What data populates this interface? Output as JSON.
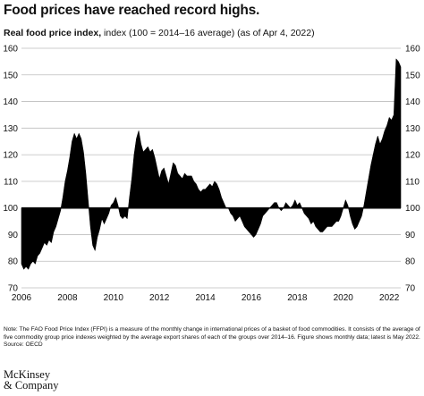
{
  "title": "Food prices have reached record highs.",
  "subtitle_bold": "Real food price index,",
  "subtitle_rest": " index (100 = 2014–16 average) (as of Apr 4, 2022)",
  "note": "Note: The FAO Food Price Index (FFPI) is a measure of the monthly change in international prices of a basket of food commodities. It consists of the average of five commodity group price indexes weighted by the average export shares of each of the groups over 2014–16. Figure shows monthly data; latest is May 2022.",
  "source": "Source: OECD",
  "logo_line1": "McKinsey",
  "logo_line2": "& Company",
  "colors": {
    "fill": "#000000",
    "grid": "#bdbdbd",
    "text": "#111111"
  },
  "chart_data": {
    "type": "area",
    "title": "Real food price index",
    "ylabel": "index (100 = 2014–16 average)",
    "baseline": 100,
    "ylim": [
      70,
      160
    ],
    "xlim": [
      2006.0,
      2022.5
    ],
    "yticks": [
      70,
      80,
      90,
      100,
      110,
      120,
      130,
      140,
      150,
      160
    ],
    "xticks": [
      2006,
      2008,
      2010,
      2012,
      2014,
      2016,
      2018,
      2020,
      2022
    ],
    "grid": true,
    "frequency": "monthly",
    "series": [
      {
        "points": [
          [
            2006.0,
            79
          ],
          [
            2006.1,
            77
          ],
          [
            2006.2,
            78
          ],
          [
            2006.3,
            77
          ],
          [
            2006.4,
            79
          ],
          [
            2006.5,
            80
          ],
          [
            2006.6,
            79
          ],
          [
            2006.7,
            82
          ],
          [
            2006.8,
            83
          ],
          [
            2006.9,
            85
          ],
          [
            2007.0,
            87
          ],
          [
            2007.1,
            86
          ],
          [
            2007.2,
            88
          ],
          [
            2007.3,
            87
          ],
          [
            2007.4,
            91
          ],
          [
            2007.5,
            93
          ],
          [
            2007.6,
            96
          ],
          [
            2007.7,
            99
          ],
          [
            2007.8,
            104
          ],
          [
            2007.9,
            110
          ],
          [
            2008.0,
            114
          ],
          [
            2008.1,
            119
          ],
          [
            2008.2,
            125
          ],
          [
            2008.3,
            128
          ],
          [
            2008.4,
            126
          ],
          [
            2008.5,
            128
          ],
          [
            2008.6,
            126
          ],
          [
            2008.7,
            121
          ],
          [
            2008.8,
            113
          ],
          [
            2008.9,
            103
          ],
          [
            2009.0,
            93
          ],
          [
            2009.1,
            86
          ],
          [
            2009.2,
            84
          ],
          [
            2009.3,
            89
          ],
          [
            2009.4,
            92
          ],
          [
            2009.5,
            96
          ],
          [
            2009.6,
            94
          ],
          [
            2009.7,
            96
          ],
          [
            2009.8,
            98
          ],
          [
            2009.9,
            101
          ],
          [
            2010.0,
            102
          ],
          [
            2010.1,
            104
          ],
          [
            2010.2,
            101
          ],
          [
            2010.3,
            97
          ],
          [
            2010.4,
            96
          ],
          [
            2010.5,
            97
          ],
          [
            2010.6,
            96
          ],
          [
            2010.7,
            104
          ],
          [
            2010.8,
            111
          ],
          [
            2010.9,
            120
          ],
          [
            2011.0,
            126
          ],
          [
            2011.1,
            129
          ],
          [
            2011.2,
            124
          ],
          [
            2011.3,
            121
          ],
          [
            2011.4,
            122
          ],
          [
            2011.5,
            123
          ],
          [
            2011.6,
            121
          ],
          [
            2011.7,
            122
          ],
          [
            2011.8,
            119
          ],
          [
            2011.9,
            115
          ],
          [
            2012.0,
            111
          ],
          [
            2012.1,
            114
          ],
          [
            2012.2,
            115
          ],
          [
            2012.3,
            112
          ],
          [
            2012.4,
            109
          ],
          [
            2012.5,
            113
          ],
          [
            2012.6,
            117
          ],
          [
            2012.7,
            116
          ],
          [
            2012.8,
            113
          ],
          [
            2012.9,
            112
          ],
          [
            2013.0,
            111
          ],
          [
            2013.1,
            113
          ],
          [
            2013.2,
            112
          ],
          [
            2013.3,
            112
          ],
          [
            2013.4,
            112
          ],
          [
            2013.5,
            110
          ],
          [
            2013.6,
            109
          ],
          [
            2013.7,
            107
          ],
          [
            2013.8,
            106
          ],
          [
            2013.9,
            107
          ],
          [
            2014.0,
            107
          ],
          [
            2014.1,
            108
          ],
          [
            2014.2,
            109
          ],
          [
            2014.3,
            108
          ],
          [
            2014.4,
            110
          ],
          [
            2014.5,
            109
          ],
          [
            2014.6,
            107
          ],
          [
            2014.7,
            104
          ],
          [
            2014.8,
            102
          ],
          [
            2014.9,
            100
          ],
          [
            2015.0,
            100
          ],
          [
            2015.1,
            98
          ],
          [
            2015.2,
            97
          ],
          [
            2015.3,
            95
          ],
          [
            2015.4,
            96
          ],
          [
            2015.5,
            97
          ],
          [
            2015.6,
            95
          ],
          [
            2015.7,
            93
          ],
          [
            2015.8,
            92
          ],
          [
            2015.9,
            91
          ],
          [
            2016.0,
            90
          ],
          [
            2016.1,
            89
          ],
          [
            2016.2,
            90
          ],
          [
            2016.3,
            92
          ],
          [
            2016.4,
            94
          ],
          [
            2016.5,
            97
          ],
          [
            2016.6,
            98
          ],
          [
            2016.7,
            99
          ],
          [
            2016.8,
            100
          ],
          [
            2016.9,
            101
          ],
          [
            2017.0,
            102
          ],
          [
            2017.1,
            102
          ],
          [
            2017.2,
            100
          ],
          [
            2017.3,
            99
          ],
          [
            2017.4,
            100
          ],
          [
            2017.5,
            102
          ],
          [
            2017.6,
            101
          ],
          [
            2017.7,
            100
          ],
          [
            2017.8,
            101
          ],
          [
            2017.9,
            103
          ],
          [
            2018.0,
            101
          ],
          [
            2018.1,
            102
          ],
          [
            2018.2,
            100
          ],
          [
            2018.3,
            98
          ],
          [
            2018.4,
            97
          ],
          [
            2018.5,
            96
          ],
          [
            2018.6,
            94
          ],
          [
            2018.7,
            95
          ],
          [
            2018.8,
            93
          ],
          [
            2018.9,
            92
          ],
          [
            2019.0,
            91
          ],
          [
            2019.1,
            91
          ],
          [
            2019.2,
            92
          ],
          [
            2019.3,
            93
          ],
          [
            2019.4,
            93
          ],
          [
            2019.5,
            93
          ],
          [
            2019.6,
            94
          ],
          [
            2019.7,
            95
          ],
          [
            2019.8,
            95
          ],
          [
            2019.9,
            97
          ],
          [
            2020.0,
            100
          ],
          [
            2020.1,
            103
          ],
          [
            2020.2,
            101
          ],
          [
            2020.3,
            97
          ],
          [
            2020.4,
            94
          ],
          [
            2020.5,
            92
          ],
          [
            2020.6,
            93
          ],
          [
            2020.7,
            95
          ],
          [
            2020.8,
            97
          ],
          [
            2020.9,
            101
          ],
          [
            2021.0,
            106
          ],
          [
            2021.1,
            111
          ],
          [
            2021.2,
            116
          ],
          [
            2021.3,
            120
          ],
          [
            2021.4,
            124
          ],
          [
            2021.5,
            127
          ],
          [
            2021.6,
            124
          ],
          [
            2021.7,
            126
          ],
          [
            2021.8,
            129
          ],
          [
            2021.9,
            131
          ],
          [
            2022.0,
            134
          ],
          [
            2022.1,
            133
          ],
          [
            2022.2,
            135
          ],
          [
            2022.3,
            156
          ],
          [
            2022.4,
            155
          ],
          [
            2022.5,
            153
          ]
        ]
      }
    ]
  }
}
